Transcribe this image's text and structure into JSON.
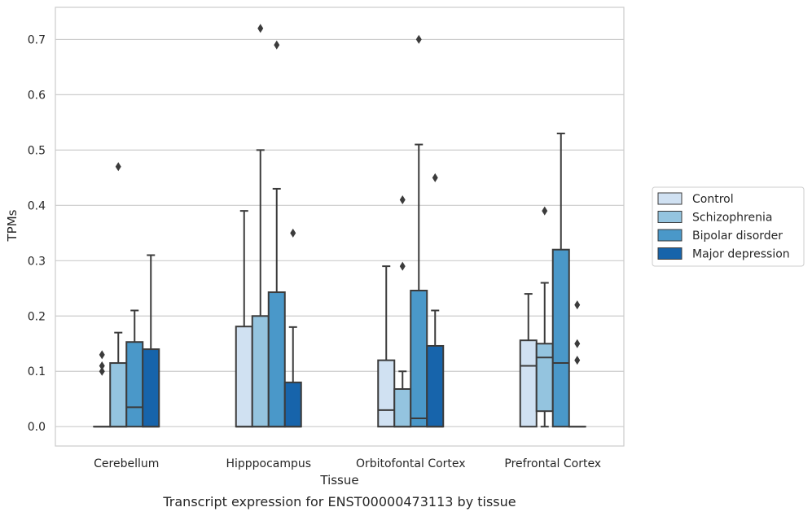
{
  "chart_data": {
    "type": "box",
    "caption": "Transcript expression for ENST00000473113 by tissue",
    "xlabel": "Tissue",
    "ylabel": "TPMs",
    "ylim": [
      -0.035,
      0.758
    ],
    "yticks": [
      0.0,
      0.1,
      0.2,
      0.3,
      0.4,
      0.5,
      0.6,
      0.7
    ],
    "ytick_labels": [
      "0.0",
      "0.1",
      "0.2",
      "0.3",
      "0.4",
      "0.5",
      "0.6",
      "0.7"
    ],
    "grid": true,
    "legend_position": "right",
    "categories": [
      "Cerebellum",
      "Hipppocampus",
      "Orbitofontal Cortex",
      "Prefrontal Cortex"
    ],
    "series": [
      {
        "name": "Control",
        "color": "#d0e1f2",
        "boxes": [
          {
            "whislo": 0.0,
            "q1": 0.0,
            "med": 0.0,
            "q3": 0.0,
            "whishi": 0.0,
            "fliers": [
              0.1,
              0.11,
              0.13
            ]
          },
          {
            "whislo": 0.0,
            "q1": 0.0,
            "med": 0.0,
            "q3": 0.181,
            "whishi": 0.39,
            "fliers": []
          },
          {
            "whislo": 0.0,
            "q1": 0.0,
            "med": 0.03,
            "q3": 0.12,
            "whishi": 0.29,
            "fliers": []
          },
          {
            "whislo": 0.0,
            "q1": 0.0,
            "med": 0.11,
            "q3": 0.156,
            "whishi": 0.24,
            "fliers": []
          }
        ]
      },
      {
        "name": "Schizophrenia",
        "color": "#94c4df",
        "boxes": [
          {
            "whislo": 0.0,
            "q1": 0.0,
            "med": 0.0,
            "q3": 0.115,
            "whishi": 0.17,
            "fliers": [
              0.47
            ]
          },
          {
            "whislo": 0.0,
            "q1": 0.0,
            "med": 0.0,
            "q3": 0.2,
            "whishi": 0.5,
            "fliers": [
              0.72
            ]
          },
          {
            "whislo": 0.0,
            "q1": 0.0,
            "med": 0.0,
            "q3": 0.068,
            "whishi": 0.1,
            "fliers": [
              0.29,
              0.41
            ]
          },
          {
            "whislo": 0.0,
            "q1": 0.028,
            "med": 0.125,
            "q3": 0.15,
            "whishi": 0.26,
            "fliers": [
              0.39
            ]
          }
        ]
      },
      {
        "name": "Bipolar disorder",
        "color": "#4a98c9",
        "boxes": [
          {
            "whislo": 0.0,
            "q1": 0.0,
            "med": 0.035,
            "q3": 0.153,
            "whishi": 0.21,
            "fliers": []
          },
          {
            "whislo": 0.0,
            "q1": 0.0,
            "med": 0.0,
            "q3": 0.243,
            "whishi": 0.43,
            "fliers": [
              0.69
            ]
          },
          {
            "whislo": 0.0,
            "q1": 0.0,
            "med": 0.015,
            "q3": 0.246,
            "whishi": 0.51,
            "fliers": [
              0.7
            ]
          },
          {
            "whislo": 0.0,
            "q1": 0.0,
            "med": 0.115,
            "q3": 0.32,
            "whishi": 0.53,
            "fliers": []
          }
        ]
      },
      {
        "name": "Major depression",
        "color": "#1764ab",
        "boxes": [
          {
            "whislo": 0.0,
            "q1": 0.0,
            "med": 0.0,
            "q3": 0.14,
            "whishi": 0.31,
            "fliers": []
          },
          {
            "whislo": 0.0,
            "q1": 0.0,
            "med": 0.0,
            "q3": 0.08,
            "whishi": 0.18,
            "fliers": [
              0.35
            ]
          },
          {
            "whislo": 0.0,
            "q1": 0.0,
            "med": 0.0,
            "q3": 0.146,
            "whishi": 0.21,
            "fliers": [
              0.45
            ]
          },
          {
            "whislo": 0.0,
            "q1": 0.0,
            "med": 0.0,
            "q3": 0.0,
            "whishi": 0.0,
            "fliers": [
              0.12,
              0.15,
              0.22
            ]
          }
        ]
      }
    ]
  }
}
